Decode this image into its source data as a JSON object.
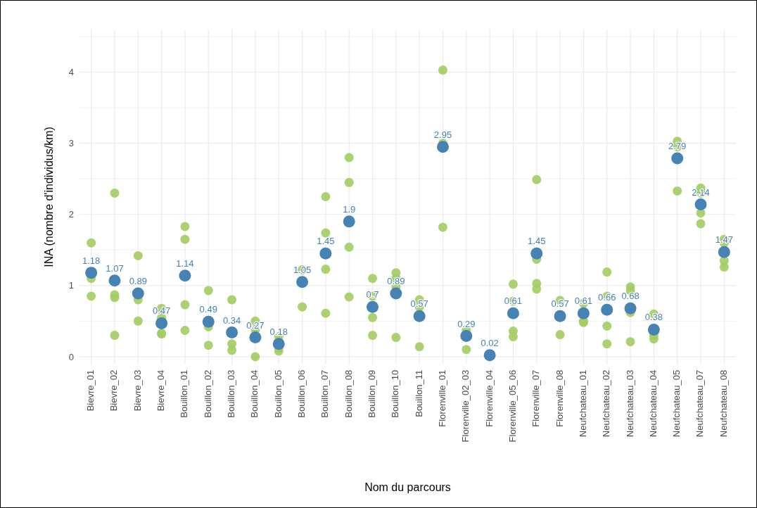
{
  "chart_data": {
    "type": "scatter",
    "xlabel": "Nom du parcours",
    "ylabel": "INA (nombre d'individus/km)",
    "categories": [
      "Bievre_01",
      "Bievre_02",
      "Bievre_03",
      "Bievre_04",
      "Bouillon_01",
      "Bouillon_02",
      "Bouillon_03",
      "Bouillon_04",
      "Bouillon_05",
      "Bouillon_06",
      "Bouillon_07",
      "Bouillon_08",
      "Bouillon_09",
      "Bouillon_10",
      "Bouillon_11",
      "Florenville_01",
      "Florenville_02_03",
      "Florenville_04",
      "Florenville_05_06",
      "Florenville_07",
      "Florenville_08",
      "Neufchateau_01",
      "Neufchateau_02",
      "Neufchateau_03",
      "Neufchateau_04",
      "Neufchateau_05",
      "Neufchateau_07",
      "Neufchateau_08"
    ],
    "ylim": [
      -0.11,
      4.6
    ],
    "yticks": [
      0,
      {
        "value": 0.5,
        "label": null
      },
      1,
      {
        "value": 1.5,
        "label": null
      },
      2,
      {
        "value": 2.5,
        "label": null
      },
      3,
      {
        "value": 3.5,
        "label": null
      },
      4,
      {
        "value": 4.5,
        "label": null
      }
    ],
    "grid": true,
    "marker": "circle",
    "series": [
      {
        "color": "#a3cc62",
        "x": [
          "Bievre_01",
          "Bievre_01",
          "Bievre_01",
          "Bievre_02",
          "Bievre_02",
          "Bievre_02",
          "Bievre_02",
          "Bievre_03",
          "Bievre_03",
          "Bievre_03",
          "Bievre_04",
          "Bievre_04",
          "Bievre_04",
          "Bievre_04",
          "Bouillon_01",
          "Bouillon_01",
          "Bouillon_01",
          "Bouillon_01",
          "Bouillon_02",
          "Bouillon_02",
          "Bouillon_02",
          "Bouillon_03",
          "Bouillon_03",
          "Bouillon_03",
          "Bouillon_04",
          "Bouillon_04",
          "Bouillon_04",
          "Bouillon_05",
          "Bouillon_05",
          "Bouillon_05",
          "Bouillon_06",
          "Bouillon_06",
          "Bouillon_07",
          "Bouillon_07",
          "Bouillon_07",
          "Bouillon_07",
          "Bouillon_08",
          "Bouillon_08",
          "Bouillon_08",
          "Bouillon_08",
          "Bouillon_09",
          "Bouillon_09",
          "Bouillon_09",
          "Bouillon_09",
          "Bouillon_10",
          "Bouillon_10",
          "Bouillon_10",
          "Bouillon_10",
          "Bouillon_11",
          "Bouillon_11",
          "Bouillon_11",
          "Florenville_01",
          "Florenville_01",
          "Florenville_01",
          "Florenville_02_03",
          "Florenville_02_03",
          "Florenville_04",
          "Florenville_05_06",
          "Florenville_05_06",
          "Florenville_05_06",
          "Florenville_05_06",
          "Florenville_07",
          "Florenville_07",
          "Florenville_07",
          "Florenville_07",
          "Florenville_08",
          "Florenville_08",
          "Neufchateau_01",
          "Neufchateau_01",
          "Neufchateau_01",
          "Neufchateau_02",
          "Neufchateau_02",
          "Neufchateau_02",
          "Neufchateau_02",
          "Neufchateau_03",
          "Neufchateau_03",
          "Neufchateau_03",
          "Neufchateau_03",
          "Neufchateau_04",
          "Neufchateau_04",
          "Neufchateau_04",
          "Neufchateau_05",
          "Neufchateau_05",
          "Neufchateau_05",
          "Neufchateau_07",
          "Neufchateau_07",
          "Neufchateau_07",
          "Neufchateau_07",
          "Neufchateau_08",
          "Neufchateau_08",
          "Neufchateau_08",
          "Neufchateau_08"
        ],
        "values": [
          1.6,
          1.1,
          0.85,
          2.3,
          0.87,
          0.83,
          0.3,
          1.42,
          0.8,
          0.5,
          0.68,
          0.55,
          0.33,
          0.32,
          1.83,
          1.65,
          0.73,
          0.37,
          0.93,
          0.42,
          0.16,
          0.8,
          0.18,
          0.09,
          0.5,
          0.38,
          0.0,
          0.28,
          0.12,
          0.08,
          1.22,
          0.7,
          2.25,
          1.74,
          1.23,
          0.61,
          2.8,
          2.45,
          1.54,
          0.84,
          1.1,
          0.85,
          0.55,
          0.3,
          1.18,
          1.1,
          0.98,
          0.27,
          0.8,
          0.7,
          0.14,
          4.03,
          3.0,
          1.82,
          0.38,
          0.1,
          0.0,
          1.02,
          0.78,
          0.36,
          0.28,
          2.49,
          1.37,
          1.03,
          0.95,
          0.79,
          0.31,
          0.75,
          0.5,
          0.48,
          1.19,
          0.85,
          0.43,
          0.18,
          0.98,
          0.93,
          0.62,
          0.21,
          0.6,
          0.3,
          0.25,
          3.03,
          2.95,
          2.33,
          2.37,
          2.3,
          2.02,
          1.87,
          1.65,
          1.6,
          1.35,
          1.26
        ]
      },
      {
        "color": "#4682b4",
        "values": [
          1.18,
          1.07,
          0.89,
          0.47,
          1.14,
          0.49,
          0.34,
          0.27,
          0.18,
          1.05,
          1.45,
          1.9,
          0.7,
          0.89,
          0.57,
          2.95,
          0.29,
          0.02,
          0.61,
          1.45,
          0.57,
          0.61,
          0.66,
          0.68,
          0.38,
          2.79,
          2.14,
          1.47
        ],
        "value_labels": [
          "1.18",
          "1.07",
          "0.89",
          "0.47",
          "1.14",
          "0.49",
          "0.34",
          "0.27",
          "0.18",
          "1.05",
          "1.45",
          "1.9",
          "0.7",
          "0.89",
          "0.57",
          "2.95",
          "0.29",
          "0.02",
          "0.61",
          "1.45",
          "0.57",
          "0.61",
          "0.66",
          "0.68",
          "0.38",
          "2.79",
          "2.14",
          "1.47"
        ]
      }
    ]
  }
}
